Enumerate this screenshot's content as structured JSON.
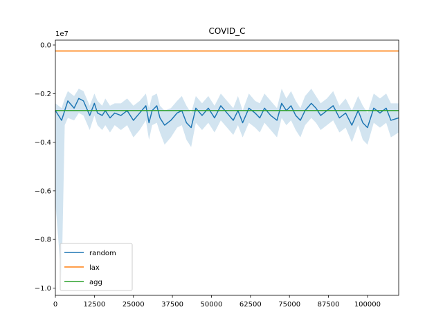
{
  "chart_data": {
    "type": "line",
    "title": "COVID_C",
    "xlabel": "",
    "ylabel": "",
    "y_scale_label": "1e7",
    "xlim": [
      0,
      110000
    ],
    "ylim": [
      -10300000,
      200000
    ],
    "x_ticks": [
      0,
      12500,
      25000,
      37500,
      50000,
      62500,
      75000,
      87500,
      100000
    ],
    "x_tick_labels": [
      "0",
      "12500",
      "25000",
      "37500",
      "50000",
      "62500",
      "75000",
      "87500",
      "100000"
    ],
    "y_ticks": [
      0,
      -2000000,
      -4000000,
      -6000000,
      -8000000,
      -10000000
    ],
    "y_tick_labels": [
      "0.0",
      "−0.2",
      "−0.4",
      "−0.6",
      "−0.8",
      "−1.0"
    ],
    "legend_position": "lower-left",
    "series": [
      {
        "name": "random",
        "color": "#1f77b4",
        "x": [
          0,
          2000,
          3000,
          4000,
          6000,
          7500,
          9000,
          11000,
          12500,
          13500,
          15000,
          16000,
          17500,
          19000,
          21000,
          23000,
          25000,
          27000,
          29000,
          30000,
          31000,
          32500,
          33500,
          35000,
          37000,
          39000,
          40500,
          42000,
          43500,
          45000,
          47000,
          49000,
          51000,
          53000,
          55000,
          57000,
          58500,
          60000,
          62000,
          64000,
          65500,
          67000,
          69000,
          71000,
          72500,
          74000,
          75500,
          77000,
          78500,
          80000,
          82000,
          83500,
          85000,
          87000,
          89000,
          91000,
          93000,
          95000,
          97000,
          98500,
          100000,
          102000,
          104000,
          106000,
          107500,
          110000
        ],
        "y": [
          -2700000,
          -3100000,
          -2700000,
          -2300000,
          -2600000,
          -2200000,
          -2300000,
          -2900000,
          -2400000,
          -2800000,
          -2900000,
          -2700000,
          -3000000,
          -2800000,
          -2900000,
          -2700000,
          -3100000,
          -2800000,
          -2500000,
          -3200000,
          -2700000,
          -2500000,
          -3000000,
          -3300000,
          -3100000,
          -2800000,
          -2700000,
          -3200000,
          -3400000,
          -2600000,
          -2900000,
          -2600000,
          -3000000,
          -2500000,
          -2800000,
          -3100000,
          -2700000,
          -3200000,
          -2600000,
          -2800000,
          -3000000,
          -2600000,
          -2900000,
          -3100000,
          -2400000,
          -2700000,
          -2500000,
          -2900000,
          -3100000,
          -2700000,
          -2400000,
          -2600000,
          -2900000,
          -2700000,
          -2500000,
          -3000000,
          -2800000,
          -3300000,
          -2700000,
          -3200000,
          -3400000,
          -2600000,
          -2800000,
          -2600000,
          -3100000,
          -3000000
        ],
        "band_upper": [
          -2400000,
          -2600000,
          -2200000,
          -1900000,
          -2100000,
          -1800000,
          -1900000,
          -2500000,
          -2000000,
          -2300000,
          -2500000,
          -2200000,
          -2500000,
          -2400000,
          -2400000,
          -2200000,
          -2500000,
          -2300000,
          -2000000,
          -2600000,
          -2100000,
          -2000000,
          -2500000,
          -2700000,
          -2600000,
          -2300000,
          -2100000,
          -2500000,
          -2800000,
          -2100000,
          -2400000,
          -2100000,
          -2500000,
          -2000000,
          -2300000,
          -2600000,
          -2100000,
          -2700000,
          -2000000,
          -2300000,
          -2400000,
          -2000000,
          -2300000,
          -2600000,
          -1800000,
          -2200000,
          -1900000,
          -2300000,
          -2600000,
          -2100000,
          -1800000,
          -2100000,
          -2400000,
          -2200000,
          -1900000,
          -2500000,
          -2200000,
          -2700000,
          -2100000,
          -2500000,
          -2800000,
          -2000000,
          -2200000,
          -2000000,
          -2400000,
          -2400000
        ],
        "band_lower": [
          -6500000,
          -9700000,
          -3300000,
          -3000000,
          -3100000,
          -2800000,
          -2900000,
          -3500000,
          -2900000,
          -3300000,
          -3500000,
          -3300000,
          -3600000,
          -3300000,
          -3500000,
          -3300000,
          -3800000,
          -3500000,
          -3100000,
          -3900000,
          -3300000,
          -3200000,
          -3600000,
          -4100000,
          -3800000,
          -3400000,
          -3300000,
          -3900000,
          -4200000,
          -3200000,
          -3500000,
          -3200000,
          -3600000,
          -3100000,
          -3400000,
          -3700000,
          -3300000,
          -3800000,
          -3200000,
          -3400000,
          -3600000,
          -3200000,
          -3500000,
          -3800000,
          -3000000,
          -3300000,
          -3100000,
          -3500000,
          -3800000,
          -3300000,
          -3000000,
          -3200000,
          -3500000,
          -3300000,
          -3100000,
          -3600000,
          -3400000,
          -4000000,
          -3300000,
          -3900000,
          -4100000,
          -3200000,
          -3400000,
          -3200000,
          -3800000,
          -3600000
        ]
      },
      {
        "name": "lax",
        "color": "#ff7f0e",
        "x": [
          0,
          110000
        ],
        "y": [
          -250000,
          -250000
        ]
      },
      {
        "name": "agg",
        "color": "#2ca02c",
        "x": [
          0,
          110000
        ],
        "y": [
          -2700000,
          -2700000
        ]
      }
    ]
  }
}
